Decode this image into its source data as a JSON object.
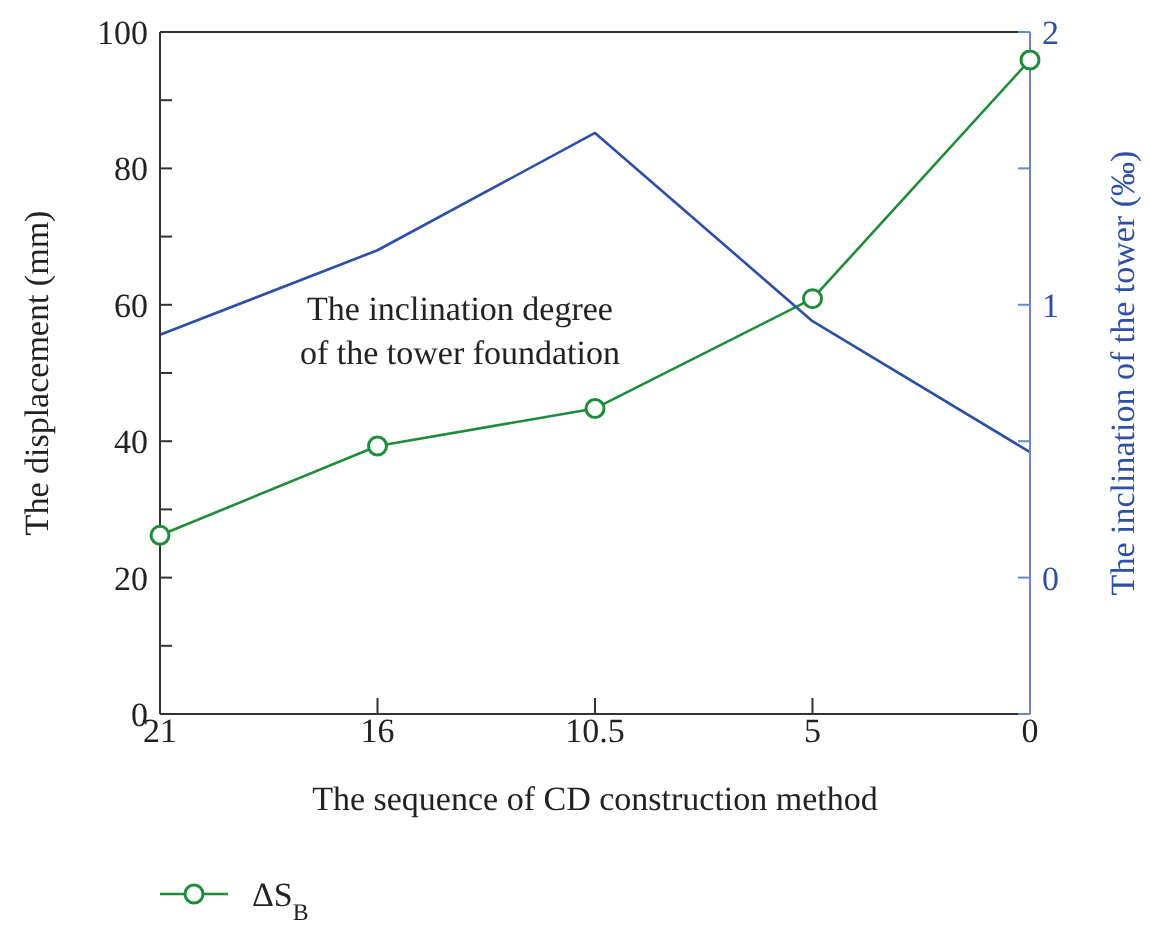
{
  "chart_data": {
    "type": "line",
    "xlabel": "The sequence of CD construction method",
    "ylabel": "The displacement (mm)",
    "y2label": "The inclination of the tower (‰)",
    "categories": [
      "21",
      "16",
      "10.5",
      "5",
      "0"
    ],
    "series": [
      {
        "name": "ΔS$_{B}$",
        "color": "#1e8c3a",
        "marker": "circle",
        "values": [
          26.2,
          39.3,
          44.8,
          60.9,
          95.9
        ]
      },
      {
        "name": "The inclination degree of the tower foundation",
        "color": "#2e4fa8",
        "axis": "y2",
        "marker": "none",
        "values": [
          0.89,
          1.2,
          1.63,
          0.94,
          0.46
        ]
      }
    ],
    "ylim": [
      0,
      100
    ],
    "yticks": [
      0,
      {
        "value": 10,
        "label": null
      },
      20,
      {
        "value": 30,
        "label": null
      },
      40,
      {
        "value": 50,
        "label": null
      },
      60,
      {
        "value": 70,
        "label": null
      },
      80,
      {
        "value": 90,
        "label": null
      },
      100
    ],
    "y2lim": [
      -0.5,
      2
    ],
    "y2ticks": [
      {
        "value": -0.5,
        "label": null
      },
      0,
      {
        "value": 0.5,
        "label": null
      },
      1,
      {
        "value": 1.5,
        "label": null
      },
      2
    ],
    "grid": false,
    "legend": "bottom left"
  }
}
